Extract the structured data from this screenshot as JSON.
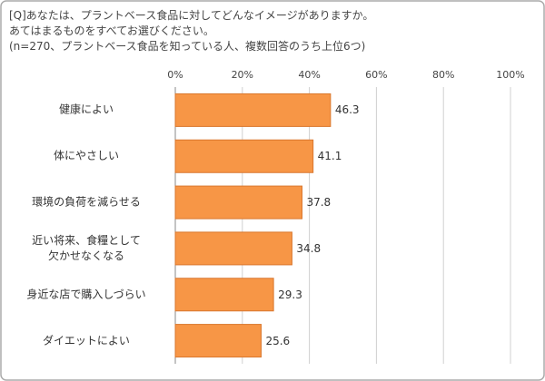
{
  "chart_data": {
    "type": "barh",
    "title": "[Q]あなたは、プラントベース食品に対してどんなイメージがありますか。",
    "subtitle": "あてはまるものをすべてお選びください。",
    "note": "(n=270、プラントベース食品を知っている人、複数回答のうち上位6つ)",
    "categories": [
      "健康によい",
      "体にやさしい",
      "環境の負荷を減らせる",
      "近い将来、食糧として\n欠かせなくなる",
      "身近な店で購入しづらい",
      "ダイエットによい"
    ],
    "values": [
      46.3,
      41.1,
      37.8,
      34.8,
      29.3,
      25.6
    ],
    "color": "#f79646",
    "xlim": [
      0,
      100
    ],
    "xticks": [
      {
        "value": 0,
        "label": "0%"
      },
      {
        "value": 20,
        "label": "20%"
      },
      {
        "value": 40,
        "label": "40%"
      },
      {
        "value": 60,
        "label": "60%"
      },
      {
        "value": 80,
        "label": "80%"
      },
      {
        "value": 100,
        "label": "100%"
      }
    ],
    "grid": true
  }
}
